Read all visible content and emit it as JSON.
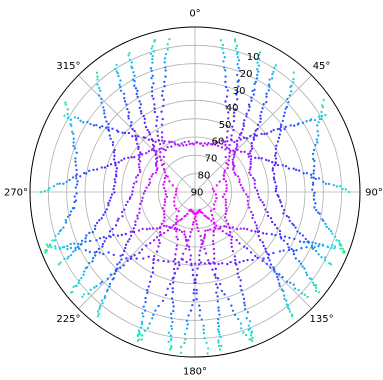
{
  "chart_data": {
    "type": "scatter",
    "projection": "polar",
    "title": "",
    "theta_direction": "clockwise",
    "theta_zero_location": "north",
    "theta_ticks_deg": [
      0,
      45,
      90,
      135,
      180,
      225,
      270,
      315
    ],
    "theta_tick_labels": [
      "0°",
      "45°",
      "90°",
      "135°",
      "180°",
      "225°",
      "270°",
      "315°"
    ],
    "r_ticks": [
      10,
      20,
      30,
      40,
      50,
      60,
      70,
      80,
      90
    ],
    "r_tick_labels": [
      "10",
      "20",
      "30",
      "40",
      "50",
      "60",
      "70",
      "80",
      "90"
    ],
    "r_label_angle_deg": 22.5,
    "r_axis": "elevation_deg (90 at center, 0 at edge)",
    "r_lim": [
      0,
      90
    ],
    "grid": true,
    "legend": "none",
    "color_scale": {
      "variable": "elevation",
      "stops": [
        {
          "value": 0,
          "color": "#35f56a"
        },
        {
          "value": 10,
          "color": "#14d6e8"
        },
        {
          "value": 25,
          "color": "#1e5bff"
        },
        {
          "value": 45,
          "color": "#5522ff"
        },
        {
          "value": 60,
          "color": "#a31cff"
        },
        {
          "value": 80,
          "color": "#ff00ff"
        }
      ]
    },
    "series": [
      {
        "points": [
          [
            25,
            6
          ],
          [
            28,
            18
          ],
          [
            31,
            30
          ],
          [
            35,
            42
          ],
          [
            40,
            54
          ],
          [
            48,
            62
          ],
          [
            60,
            66
          ],
          [
            85,
            64
          ],
          [
            110,
            58
          ],
          [
            125,
            48
          ],
          [
            132,
            36
          ],
          [
            137,
            24
          ],
          [
            140,
            12
          ],
          [
            142,
            4
          ]
        ]
      },
      {
        "points": [
          [
            32,
            8
          ],
          [
            35,
            20
          ],
          [
            40,
            33
          ],
          [
            46,
            45
          ],
          [
            55,
            54
          ],
          [
            70,
            58
          ],
          [
            92,
            56
          ],
          [
            108,
            48
          ],
          [
            118,
            36
          ],
          [
            123,
            24
          ],
          [
            127,
            12
          ],
          [
            129,
            3
          ]
        ]
      },
      {
        "points": [
          [
            40,
            6
          ],
          [
            45,
            18
          ],
          [
            52,
            30
          ],
          [
            62,
            40
          ],
          [
            75,
            46
          ],
          [
            90,
            46
          ],
          [
            103,
            40
          ],
          [
            111,
            30
          ],
          [
            116,
            18
          ],
          [
            118,
            6
          ]
        ]
      },
      {
        "points": [
          [
            55,
            4
          ],
          [
            62,
            14
          ],
          [
            72,
            22
          ],
          [
            85,
            26
          ],
          [
            97,
            24
          ],
          [
            105,
            16
          ],
          [
            110,
            6
          ],
          [
            112,
            2
          ]
        ]
      },
      {
        "points": [
          [
            15,
            4
          ],
          [
            18,
            14
          ],
          [
            22,
            28
          ],
          [
            27,
            44
          ],
          [
            38,
            60
          ],
          [
            60,
            72
          ],
          [
            100,
            74
          ],
          [
            130,
            68
          ],
          [
            145,
            56
          ],
          [
            152,
            40
          ],
          [
            156,
            24
          ],
          [
            158,
            10
          ],
          [
            159,
            3
          ]
        ]
      },
      {
        "points": [
          [
            10,
            6
          ],
          [
            14,
            22
          ],
          [
            20,
            40
          ],
          [
            35,
            62
          ],
          [
            80,
            80
          ],
          [
            140,
            76
          ],
          [
            160,
            62
          ],
          [
            166,
            44
          ],
          [
            169,
            26
          ],
          [
            170,
            12
          ],
          [
            171,
            3
          ]
        ]
      },
      {
        "points": [
          [
            -25,
            6
          ],
          [
            -28,
            18
          ],
          [
            -31,
            30
          ],
          [
            -35,
            42
          ],
          [
            -40,
            54
          ],
          [
            -48,
            62
          ],
          [
            -60,
            66
          ],
          [
            -85,
            64
          ],
          [
            -110,
            58
          ],
          [
            -125,
            48
          ],
          [
            -132,
            36
          ],
          [
            -137,
            24
          ],
          [
            -140,
            12
          ],
          [
            -142,
            4
          ]
        ]
      },
      {
        "points": [
          [
            -32,
            8
          ],
          [
            -35,
            20
          ],
          [
            -40,
            33
          ],
          [
            -46,
            45
          ],
          [
            -55,
            54
          ],
          [
            -70,
            58
          ],
          [
            -92,
            56
          ],
          [
            -108,
            48
          ],
          [
            -118,
            36
          ],
          [
            -123,
            24
          ],
          [
            -127,
            12
          ],
          [
            -129,
            3
          ]
        ]
      },
      {
        "points": [
          [
            -40,
            6
          ],
          [
            -45,
            18
          ],
          [
            -52,
            30
          ],
          [
            -62,
            40
          ],
          [
            -75,
            46
          ],
          [
            -90,
            46
          ],
          [
            -103,
            40
          ],
          [
            -111,
            30
          ],
          [
            -116,
            18
          ],
          [
            -118,
            6
          ]
        ]
      },
      {
        "points": [
          [
            -55,
            4
          ],
          [
            -62,
            14
          ],
          [
            -72,
            22
          ],
          [
            -85,
            26
          ],
          [
            -97,
            24
          ],
          [
            -105,
            16
          ],
          [
            -110,
            6
          ],
          [
            -112,
            2
          ]
        ]
      },
      {
        "points": [
          [
            -15,
            4
          ],
          [
            -18,
            14
          ],
          [
            -22,
            28
          ],
          [
            -27,
            44
          ],
          [
            -38,
            60
          ],
          [
            -60,
            72
          ],
          [
            -100,
            74
          ],
          [
            -130,
            68
          ],
          [
            -145,
            56
          ],
          [
            -152,
            40
          ],
          [
            -156,
            24
          ],
          [
            -158,
            10
          ],
          [
            -159,
            3
          ]
        ]
      },
      {
        "points": [
          [
            -10,
            6
          ],
          [
            -14,
            22
          ],
          [
            -20,
            40
          ],
          [
            -35,
            62
          ],
          [
            -80,
            80
          ],
          [
            -140,
            76
          ],
          [
            -160,
            62
          ],
          [
            -166,
            44
          ],
          [
            -169,
            26
          ],
          [
            -170,
            12
          ],
          [
            -171,
            3
          ]
        ]
      },
      {
        "points": [
          [
            300,
            8
          ],
          [
            303,
            20
          ],
          [
            306,
            32
          ],
          [
            312,
            44
          ],
          [
            322,
            55
          ],
          [
            340,
            62
          ],
          [
            10,
            64
          ],
          [
            40,
            60
          ],
          [
            60,
            52
          ],
          [
            72,
            42
          ],
          [
            80,
            30
          ],
          [
            86,
            18
          ],
          [
            90,
            6
          ]
        ]
      },
      {
        "points": [
          [
            60,
            8
          ],
          [
            57,
            20
          ],
          [
            54,
            32
          ],
          [
            48,
            44
          ],
          [
            38,
            55
          ],
          [
            20,
            62
          ],
          [
            350,
            64
          ],
          [
            320,
            60
          ],
          [
            300,
            52
          ],
          [
            288,
            42
          ],
          [
            280,
            30
          ],
          [
            274,
            18
          ],
          [
            270,
            6
          ]
        ]
      },
      {
        "points": [
          [
            250,
            4
          ],
          [
            245,
            18
          ],
          [
            235,
            32
          ],
          [
            215,
            46
          ],
          [
            190,
            52
          ],
          [
            165,
            50
          ],
          [
            145,
            44
          ],
          [
            125,
            34
          ],
          [
            115,
            20
          ],
          [
            110,
            6
          ]
        ]
      },
      {
        "points": [
          [
            185,
            2
          ],
          [
            183,
            20
          ],
          [
            180,
            40
          ],
          [
            175,
            58
          ],
          [
            165,
            68
          ],
          [
            140,
            66
          ],
          [
            125,
            55
          ],
          [
            118,
            40
          ],
          [
            114,
            22
          ],
          [
            112,
            8
          ]
        ]
      },
      {
        "points": [
          [
            175,
            2
          ],
          [
            177,
            20
          ],
          [
            180,
            40
          ],
          [
            185,
            58
          ],
          [
            195,
            68
          ],
          [
            220,
            66
          ],
          [
            235,
            55
          ],
          [
            242,
            40
          ],
          [
            246,
            22
          ],
          [
            248,
            8
          ]
        ]
      },
      {
        "points": [
          [
            200,
            4
          ],
          [
            198,
            22
          ],
          [
            194,
            44
          ],
          [
            188,
            64
          ],
          [
            180,
            78
          ],
          [
            165,
            80
          ],
          [
            150,
            72
          ],
          [
            140,
            58
          ],
          [
            136,
            40
          ],
          [
            134,
            20
          ],
          [
            133,
            6
          ]
        ]
      },
      {
        "points": [
          [
            160,
            4
          ],
          [
            162,
            22
          ],
          [
            166,
            44
          ],
          [
            172,
            64
          ],
          [
            180,
            78
          ],
          [
            195,
            80
          ],
          [
            210,
            72
          ],
          [
            220,
            58
          ],
          [
            224,
            40
          ],
          [
            226,
            20
          ],
          [
            227,
            6
          ]
        ]
      }
    ]
  }
}
